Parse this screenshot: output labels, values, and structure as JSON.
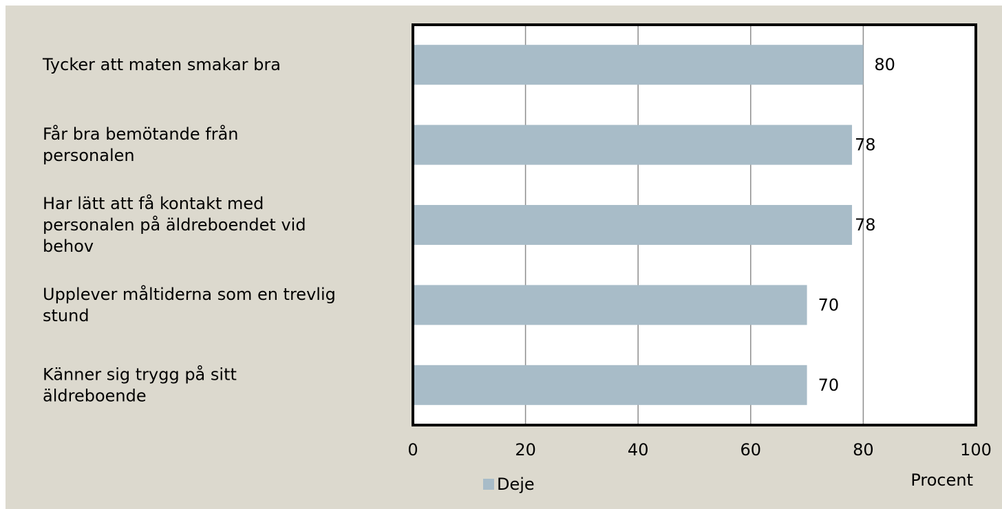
{
  "chart_data": {
    "type": "bar",
    "orientation": "horizontal",
    "categories": [
      "Tycker att maten smakar bra",
      "Får bra bemötande från personalen",
      "Har lätt att få kontakt med personalen på äldreboendet vid behov",
      "Upplever måltiderna som en trevlig stund",
      "Känner sig trygg på sitt äldreboende"
    ],
    "category_lines": [
      [
        "Tycker att maten smakar bra"
      ],
      [
        "Får bra bemötande från",
        "personalen"
      ],
      [
        "Har lätt att få kontakt med",
        "personalen på äldreboendet vid",
        "behov"
      ],
      [
        "Upplever måltiderna som en trevlig",
        "stund"
      ],
      [
        "Känner sig trygg på sitt",
        "äldreboende"
      ]
    ],
    "series": [
      {
        "name": "Deje",
        "values": [
          80,
          78,
          78,
          70,
          70
        ],
        "color": "#a8bcc8"
      }
    ],
    "xlim": [
      0,
      100
    ],
    "xticks": [
      0,
      20,
      40,
      60,
      80,
      100
    ],
    "xunit_label": "Procent",
    "grid": true,
    "legend_position": "bottom",
    "background_color": "#dcd9ce",
    "plot_background_color": "#ffffff"
  }
}
